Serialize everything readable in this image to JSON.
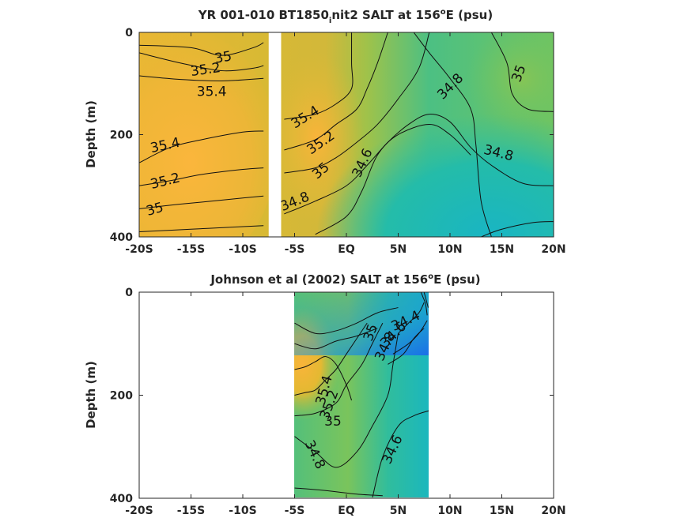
{
  "chart_data": [
    {
      "type": "heatmap",
      "title": {
        "pre": "YR 001-010 BT1850",
        "sub": "i",
        "mid": "nit2 SALT at 156",
        "sup": "o",
        "post": "E (psu)"
      },
      "ylabel": "Depth (m)",
      "x_ticklabels": [
        "-20S",
        "-15S",
        "-10S",
        "-5S",
        "EQ",
        "5N",
        "10N",
        "15N",
        "20N"
      ],
      "x_ticks": [
        -20,
        -15,
        -10,
        -5,
        0,
        5,
        10,
        15,
        20
      ],
      "y_ticks": [
        0,
        200,
        400
      ],
      "xlim": [
        -20,
        20
      ],
      "ylim": [
        0,
        400
      ],
      "gap_latitude_range": [
        -7.5,
        -6.3
      ],
      "colorscale": [
        "#1e8fe0",
        "#16b2c9",
        "#2fbe9c",
        "#6cc466",
        "#b4c33a",
        "#e3b92f",
        "#f9b43a"
      ],
      "contour_lines": [
        {
          "label": "35",
          "points": [
            [
              -20,
              25
            ],
            [
              -15,
              30
            ],
            [
              -12,
              45
            ],
            [
              -9,
              30
            ],
            [
              -8,
              20
            ]
          ]
        },
        {
          "label": "35.2",
          "points": [
            [
              -20,
              40
            ],
            [
              -16,
              60
            ],
            [
              -12,
              75
            ],
            [
              -9,
              70
            ],
            [
              -8,
              65
            ]
          ]
        },
        {
          "label": "35.4",
          "points": [
            [
              -20,
              85
            ],
            [
              -16,
              92
            ],
            [
              -12,
              95
            ],
            [
              -8,
              90
            ]
          ]
        },
        {
          "label": "35.4",
          "points": [
            [
              -20,
              255
            ],
            [
              -17,
              225
            ],
            [
              -14,
              210
            ],
            [
              -10,
              195
            ],
            [
              -8,
              193
            ]
          ]
        },
        {
          "label": "35.2",
          "points": [
            [
              -20,
              300
            ],
            [
              -17,
              290
            ],
            [
              -14,
              278
            ],
            [
              -10,
              268
            ],
            [
              -8,
              265
            ]
          ]
        },
        {
          "label": "35",
          "points": [
            [
              -20,
              345
            ],
            [
              -17,
              338
            ],
            [
              -14,
              332
            ],
            [
              -10,
              324
            ],
            [
              -8,
              320
            ]
          ]
        },
        {
          "label": "",
          "points": [
            [
              -20,
              390
            ],
            [
              -15,
              385
            ],
            [
              -10,
              380
            ],
            [
              -8,
              378
            ]
          ]
        },
        {
          "label": "35.4",
          "points": [
            [
              -6,
              170
            ],
            [
              -3,
              160
            ],
            [
              -1,
              140
            ],
            [
              0.5,
              110
            ],
            [
              0.5,
              60
            ],
            [
              0.5,
              0
            ]
          ]
        },
        {
          "label": "35.2",
          "points": [
            [
              -6,
              230
            ],
            [
              -3,
              210
            ],
            [
              -1,
              180
            ],
            [
              1,
              150
            ],
            [
              2,
              110
            ],
            [
              3,
              60
            ],
            [
              4,
              0
            ]
          ]
        },
        {
          "label": "35",
          "points": [
            [
              -6,
              275
            ],
            [
              -3,
              265
            ],
            [
              -1,
              245
            ],
            [
              1,
              215
            ],
            [
              3,
              180
            ],
            [
              5,
              130
            ],
            [
              7,
              70
            ],
            [
              8,
              0
            ]
          ]
        },
        {
          "label": "34.8",
          "points": [
            [
              -6,
              355
            ],
            [
              -3,
              330
            ],
            [
              0,
              300
            ],
            [
              2,
              260
            ],
            [
              4,
              215
            ],
            [
              6,
              180
            ],
            [
              8,
              160
            ],
            [
              10,
              175
            ],
            [
              12,
              225
            ],
            [
              14,
              260
            ],
            [
              17,
              295
            ],
            [
              20,
              300
            ]
          ]
        },
        {
          "label": "34.6",
          "points": [
            [
              -3,
              395
            ],
            [
              0,
              360
            ],
            [
              1.5,
              310
            ],
            [
              3,
              240
            ],
            [
              5,
              200
            ],
            [
              8,
              180
            ],
            [
              10,
              200
            ],
            [
              12,
              240
            ]
          ]
        },
        {
          "label": "34.8",
          "points": [
            [
              6.5,
              0
            ],
            [
              8,
              40
            ],
            [
              10,
              90
            ],
            [
              12,
              150
            ],
            [
              12.5,
              220
            ],
            [
              13,
              330
            ],
            [
              14,
              400
            ]
          ]
        },
        {
          "label": "35",
          "points": [
            [
              14,
              0
            ],
            [
              15.5,
              60
            ],
            [
              16,
              120
            ],
            [
              17.5,
              150
            ],
            [
              20,
              155
            ]
          ]
        },
        {
          "label": "",
          "points": [
            [
              13,
              400
            ],
            [
              15,
              385
            ],
            [
              18,
              372
            ],
            [
              20,
              370
            ]
          ]
        }
      ],
      "contour_labels": [
        {
          "text": "35",
          "lat": -11.9,
          "depth": 48,
          "angle": -10
        },
        {
          "text": "35.2",
          "lat": -13.6,
          "depth": 72,
          "angle": -8
        },
        {
          "text": "35.4",
          "lat": -13,
          "depth": 115,
          "angle": 0
        },
        {
          "text": "35.4",
          "lat": -17.5,
          "depth": 220,
          "angle": -12
        },
        {
          "text": "35.2",
          "lat": -17.5,
          "depth": 290,
          "angle": -14
        },
        {
          "text": "35",
          "lat": -18.5,
          "depth": 345,
          "angle": -16
        },
        {
          "text": "35.4",
          "lat": -4,
          "depth": 165,
          "angle": -32
        },
        {
          "text": "35.2",
          "lat": -2.5,
          "depth": 215,
          "angle": -35
        },
        {
          "text": "35",
          "lat": -2.5,
          "depth": 270,
          "angle": -40
        },
        {
          "text": "34.8",
          "lat": -5,
          "depth": 330,
          "angle": -22
        },
        {
          "text": "34.6",
          "lat": 1.5,
          "depth": 255,
          "angle": -65
        },
        {
          "text": "34.8",
          "lat": 10,
          "depth": 105,
          "angle": -45
        },
        {
          "text": "34.8",
          "lat": 14.7,
          "depth": 235,
          "angle": 14
        },
        {
          "text": "35",
          "lat": 16.6,
          "depth": 80,
          "angle": -70
        }
      ]
    },
    {
      "type": "heatmap",
      "title": {
        "pre": "Johnson et al (2002) SALT at 156",
        "sup": "o",
        "post": "E (psu)"
      },
      "ylabel": "Depth (m)",
      "x_ticklabels": [
        "-20S",
        "-15S",
        "-10S",
        "-5S",
        "EQ",
        "5N",
        "10N",
        "15N",
        "20N"
      ],
      "x_ticks": [
        -20,
        -15,
        -10,
        -5,
        0,
        5,
        10,
        15,
        20
      ],
      "y_ticks": [
        0,
        200,
        400
      ],
      "xlim": [
        -20,
        20
      ],
      "ylim": [
        0,
        400
      ],
      "data_latitude_range": [
        -5,
        8
      ],
      "colorscale": [
        "#1e8fe0",
        "#16b2c9",
        "#2fbe9c",
        "#6cc466",
        "#b4c33a",
        "#e3b92f",
        "#f9b43a"
      ],
      "contour_lines": [
        {
          "label": "35.4",
          "points": [
            [
              -5,
              150
            ],
            [
              -4,
              145
            ],
            [
              -3,
              135
            ],
            [
              -2,
              125
            ],
            [
              -1,
              140
            ],
            [
              0,
              180
            ],
            [
              0.5,
              210
            ]
          ]
        },
        {
          "label": "35.2",
          "points": [
            [
              -5,
              200
            ],
            [
              -4,
              195
            ],
            [
              -3,
              190
            ],
            [
              -2,
              170
            ],
            [
              -1,
              150
            ],
            [
              0,
              120
            ],
            [
              1,
              90
            ],
            [
              2,
              60
            ]
          ]
        },
        {
          "label": "35",
          "points": [
            [
              -5,
              240
            ],
            [
              -3,
              235
            ],
            [
              -1,
              215
            ],
            [
              0,
              180
            ],
            [
              1.5,
              140
            ],
            [
              2.5,
              100
            ],
            [
              3.5,
              60
            ]
          ]
        },
        {
          "label": "34.8",
          "points": [
            [
              -5,
              280
            ],
            [
              -3,
              310
            ],
            [
              -1,
              340
            ],
            [
              1,
              310
            ],
            [
              2.5,
              260
            ],
            [
              4,
              200
            ],
            [
              4.5,
              140
            ],
            [
              5,
              80
            ]
          ]
        },
        {
          "label": "34.6",
          "points": [
            [
              2.5,
              400
            ],
            [
              3.5,
              320
            ],
            [
              5,
              260
            ],
            [
              6.5,
              240
            ],
            [
              8,
              230
            ]
          ]
        },
        {
          "label": "34.4",
          "points": [
            [
              5,
              80
            ],
            [
              6,
              60
            ],
            [
              7,
              40
            ],
            [
              7.5,
              20
            ]
          ]
        },
        {
          "label": "34.6",
          "points": [
            [
              4.5,
              120
            ],
            [
              6,
              100
            ],
            [
              7,
              80
            ],
            [
              7.8,
              55
            ]
          ]
        },
        {
          "label": "34.8",
          "points": [
            [
              4,
              140
            ],
            [
              5.5,
              120
            ],
            [
              6.5,
              90
            ],
            [
              7.5,
              70
            ]
          ]
        },
        {
          "label": "",
          "points": [
            [
              -5,
              60
            ],
            [
              -3,
              80
            ],
            [
              -1,
              75
            ],
            [
              1,
              60
            ],
            [
              3,
              40
            ],
            [
              5,
              30
            ]
          ]
        },
        {
          "label": "",
          "points": [
            [
              -5,
              100
            ],
            [
              -3,
              110
            ],
            [
              -1,
              95
            ],
            [
              1,
              85
            ],
            [
              3,
              70
            ]
          ]
        },
        {
          "label": "",
          "points": [
            [
              7.2,
              0
            ],
            [
              7.4,
              10
            ],
            [
              7.6,
              20
            ],
            [
              7.7,
              30
            ],
            [
              7.8,
              45
            ]
          ]
        },
        {
          "label": "",
          "points": [
            [
              7.5,
              0
            ],
            [
              7.7,
              15
            ],
            [
              7.9,
              30
            ]
          ]
        },
        {
          "label": "",
          "points": [
            [
              -5,
              380
            ],
            [
              -2,
              385
            ],
            [
              1,
              392
            ],
            [
              3.5,
              395
            ]
          ]
        }
      ],
      "contour_labels": [
        {
          "text": "34.4",
          "lat": 5.7,
          "depth": 55,
          "angle": -25
        },
        {
          "text": "34.6",
          "lat": 4.5,
          "depth": 82,
          "angle": -45
        },
        {
          "text": "34.8",
          "lat": 3.7,
          "depth": 105,
          "angle": -65
        },
        {
          "text": "35",
          "lat": 2.3,
          "depth": 78,
          "angle": -70
        },
        {
          "text": "35.4",
          "lat": -2.2,
          "depth": 190,
          "angle": -75
        },
        {
          "text": "35.2",
          "lat": -1.7,
          "depth": 218,
          "angle": -70
        },
        {
          "text": "35",
          "lat": -1.3,
          "depth": 250,
          "angle": 0
        },
        {
          "text": "34.8",
          "lat": -3,
          "depth": 315,
          "angle": 65
        },
        {
          "text": "34.6",
          "lat": 4.4,
          "depth": 305,
          "angle": -65
        }
      ]
    }
  ]
}
